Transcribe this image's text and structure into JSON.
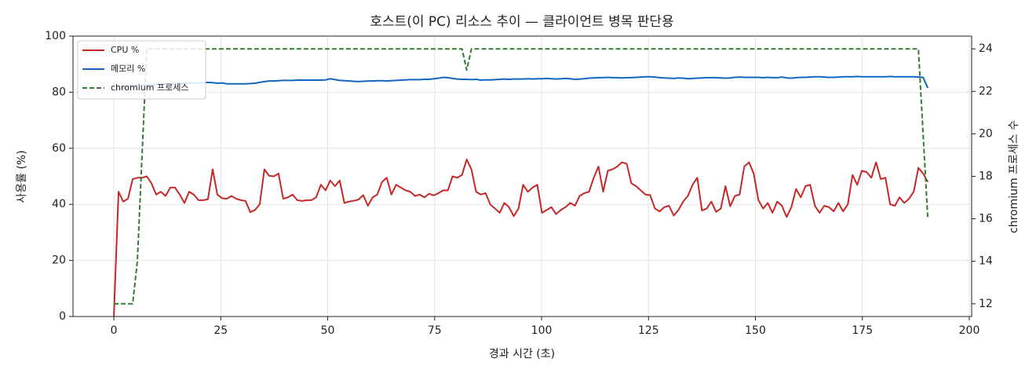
{
  "chart_data": {
    "type": "line",
    "title": "호스트(이 PC) 리소스 추이 — 클라이언트 병목 판단용",
    "x_label": "경과 시간 (초)",
    "y_label": "사용률 (%)",
    "y2_label": "chromium 프로세스 수",
    "x": [
      0,
      1.1,
      2.2,
      3.3,
      4.4,
      5.5,
      6.6,
      7.7,
      8.8,
      9.9,
      11,
      12.1,
      13.2,
      14.3,
      15.4,
      16.5,
      17.6,
      18.7,
      19.8,
      20.9,
      22,
      23.1,
      24.2,
      25.3,
      26.4,
      27.5,
      28.6,
      29.7,
      30.8,
      31.9,
      33,
      34.1,
      35.2,
      36.3,
      37.4,
      38.5,
      39.6,
      40.7,
      41.8,
      42.9,
      44,
      45.1,
      46.2,
      47.3,
      48.4,
      49.5,
      50.6,
      51.7,
      52.8,
      53.9,
      55,
      56.1,
      57.2,
      58.3,
      59.4,
      60.5,
      61.6,
      62.7,
      63.8,
      64.9,
      66,
      67.1,
      68.2,
      69.3,
      70.4,
      71.5,
      72.6,
      73.7,
      74.8,
      75.9,
      77,
      78.1,
      79.2,
      80.3,
      81.4,
      82.5,
      83.6,
      84.7,
      85.8,
      86.9,
      88,
      89.1,
      90.2,
      91.3,
      92.4,
      93.5,
      94.6,
      95.7,
      96.8,
      97.9,
      99,
      100.1,
      101.2,
      102.3,
      103.4,
      104.5,
      105.6,
      106.7,
      107.8,
      108.9,
      110,
      111.1,
      112.2,
      113.3,
      114.4,
      115.5,
      116.6,
      117.7,
      118.8,
      119.9,
      121,
      122.1,
      123.2,
      124.3,
      125.4,
      126.5,
      127.6,
      128.7,
      129.8,
      130.9,
      132,
      133.1,
      134.2,
      135.3,
      136.4,
      137.5,
      138.6,
      139.7,
      140.8,
      141.9,
      143,
      144.1,
      145.2,
      146.3,
      147.4,
      148.5,
      149.6,
      150.7,
      151.8,
      152.9,
      154,
      155.1,
      156.2,
      157.3,
      158.4,
      159.5,
      160.6,
      161.7,
      162.8,
      163.9,
      165,
      166.1,
      167.2,
      168.3,
      169.4,
      170.5,
      171.6,
      172.7,
      173.8,
      174.9,
      176,
      177.1,
      178.2,
      179.3,
      180.4,
      181.5,
      182.6,
      183.7,
      184.8,
      185.9,
      187,
      188.1,
      189.2,
      190.3
    ],
    "series": [
      {
        "name": "CPU %",
        "color": "#c62828",
        "axis": "y",
        "dashed": false,
        "values": [
          0,
          44.5,
          41,
          42,
          49,
          49.5,
          49.5,
          50,
          47.5,
          43.5,
          44.5,
          43,
          46,
          46,
          43.5,
          40.5,
          44.5,
          43.5,
          41.5,
          41.5,
          41.8,
          52.5,
          43.5,
          42.2,
          42,
          43,
          42,
          41.5,
          41.2,
          37.2,
          38,
          40,
          52.5,
          50.2,
          50,
          51,
          42,
          42.5,
          43.5,
          41.5,
          41.2,
          41.5,
          41.5,
          42.5,
          47,
          45,
          48.5,
          46.5,
          48.5,
          40.5,
          41,
          41.3,
          41.7,
          43.3,
          39.5,
          42.5,
          43.5,
          48,
          49.5,
          43.5,
          47,
          46,
          45,
          44.5,
          43,
          43.5,
          42.5,
          43.8,
          43.2,
          44,
          45,
          45,
          50,
          49.5,
          50.5,
          56,
          52.5,
          44.5,
          43.5,
          44,
          40,
          38.5,
          37,
          40.5,
          39,
          35.8,
          38.5,
          47,
          44.5,
          46,
          47,
          37,
          38,
          39,
          36.5,
          38,
          39,
          40.5,
          39.5,
          43,
          44,
          44.5,
          49.5,
          53.5,
          44.5,
          52,
          52.5,
          53.5,
          55,
          54.5,
          47.5,
          46.5,
          45,
          43.5,
          43.3,
          38.5,
          37.5,
          39,
          39.5,
          36,
          38,
          41,
          43,
          47,
          49.5,
          37.8,
          38.5,
          41,
          37.3,
          38.5,
          46.5,
          39.3,
          43,
          43.5,
          53.5,
          55,
          51,
          41.5,
          38.5,
          40.5,
          37,
          41,
          39.5,
          35.5,
          39,
          45.5,
          42.5,
          46.5,
          47,
          39.5,
          37,
          39.5,
          39,
          37.5,
          40.5,
          37.5,
          40,
          50.5,
          47,
          52,
          51.5,
          49.5,
          55,
          49,
          49.5,
          40,
          39.5,
          42.5,
          40.5,
          42,
          44.5,
          53,
          51,
          48
        ]
      },
      {
        "name": "메모리 %",
        "color": "#1565c0",
        "axis": "y",
        "dashed": false,
        "values": [
          80.5,
          81,
          81.5,
          82,
          82.2,
          82.4,
          82.5,
          82.6,
          82.7,
          82.8,
          82.8,
          82.9,
          83,
          83,
          83.1,
          83.1,
          83.2,
          83.3,
          83.3,
          83.4,
          83.5,
          83.4,
          83.2,
          83.3,
          83,
          83,
          83,
          83,
          83,
          83.1,
          83.2,
          83.5,
          83.8,
          84,
          84,
          84.1,
          84.2,
          84.2,
          84.2,
          84.3,
          84.3,
          84.3,
          84.3,
          84.3,
          84.3,
          84.4,
          84.8,
          84.5,
          84.2,
          84.1,
          84,
          83.9,
          83.8,
          83.9,
          84,
          84,
          84.1,
          84.1,
          84,
          84.1,
          84.2,
          84.3,
          84.4,
          84.5,
          84.5,
          84.5,
          84.6,
          84.6,
          84.8,
          85,
          85.3,
          85.2,
          84.9,
          84.7,
          84.6,
          84.6,
          84.5,
          84.6,
          84.3,
          84.4,
          84.4,
          84.5,
          84.6,
          84.7,
          84.6,
          84.7,
          84.7,
          84.7,
          84.8,
          84.7,
          84.8,
          84.8,
          84.9,
          84.8,
          84.7,
          84.8,
          84.9,
          84.8,
          84.6,
          84.7,
          84.8,
          85,
          85.1,
          85.2,
          85.2,
          85.3,
          85.2,
          85.2,
          85.1,
          85.2,
          85.2,
          85.3,
          85.4,
          85.5,
          85.5,
          85.4,
          85.2,
          85.1,
          85,
          84.9,
          85.1,
          85,
          84.8,
          84.9,
          85,
          85.1,
          85.2,
          85.2,
          85.2,
          85.1,
          85,
          85.1,
          85.3,
          85.4,
          85.3,
          85.3,
          85.3,
          85.3,
          85.2,
          85.3,
          85.2,
          85.2,
          85.4,
          85.1,
          85,
          85.2,
          85.3,
          85.3,
          85.4,
          85.5,
          85.5,
          85.4,
          85.3,
          85.3,
          85.4,
          85.5,
          85.5,
          85.5,
          85.6,
          85.5,
          85.5,
          85.5,
          85.5,
          85.5,
          85.5,
          85.6,
          85.5,
          85.5,
          85.5,
          85.5,
          85.5,
          85.4,
          85.3,
          81.5
        ]
      },
      {
        "name": "chromium 프로세스",
        "color": "#2e7d32",
        "axis": "y2",
        "dashed": true,
        "values": [
          12,
          12,
          12,
          12,
          12,
          14,
          19,
          24,
          24,
          24,
          24,
          24,
          24,
          24,
          24,
          24,
          24,
          24,
          24,
          24,
          24,
          24,
          24,
          24,
          24,
          24,
          24,
          24,
          24,
          24,
          24,
          24,
          24,
          24,
          24,
          24,
          24,
          24,
          24,
          24,
          24,
          24,
          24,
          24,
          24,
          24,
          24,
          24,
          24,
          24,
          24,
          24,
          24,
          24,
          24,
          24,
          24,
          24,
          24,
          24,
          24,
          24,
          24,
          24,
          24,
          24,
          24,
          24,
          24,
          24,
          24,
          24,
          24,
          24,
          24,
          23,
          24,
          24,
          24,
          24,
          24,
          24,
          24,
          24,
          24,
          24,
          24,
          24,
          24,
          24,
          24,
          24,
          24,
          24,
          24,
          24,
          24,
          24,
          24,
          24,
          24,
          24,
          24,
          24,
          24,
          24,
          24,
          24,
          24,
          24,
          24,
          24,
          24,
          24,
          24,
          24,
          24,
          24,
          24,
          24,
          24,
          24,
          24,
          24,
          24,
          24,
          24,
          24,
          24,
          24,
          24,
          24,
          24,
          24,
          24,
          24,
          24,
          24,
          24,
          24,
          24,
          24,
          24,
          24,
          24,
          24,
          24,
          24,
          24,
          24,
          24,
          24,
          24,
          24,
          24,
          24,
          24,
          24,
          24,
          24,
          24,
          24,
          24,
          24,
          24,
          24,
          24,
          24,
          24,
          24,
          24,
          24,
          20,
          16
        ]
      }
    ],
    "xlim": [
      -9.55,
      200.55
    ],
    "xticks": [
      0,
      25,
      50,
      75,
      100,
      125,
      150,
      175,
      200
    ],
    "ylim": [
      0,
      100
    ],
    "yticks": [
      0,
      20,
      40,
      60,
      80,
      100
    ],
    "y2lim": [
      11.4,
      24.6
    ],
    "y2ticks": [
      12,
      14,
      16,
      18,
      20,
      22,
      24
    ],
    "grid": true,
    "legend": "upper left"
  }
}
